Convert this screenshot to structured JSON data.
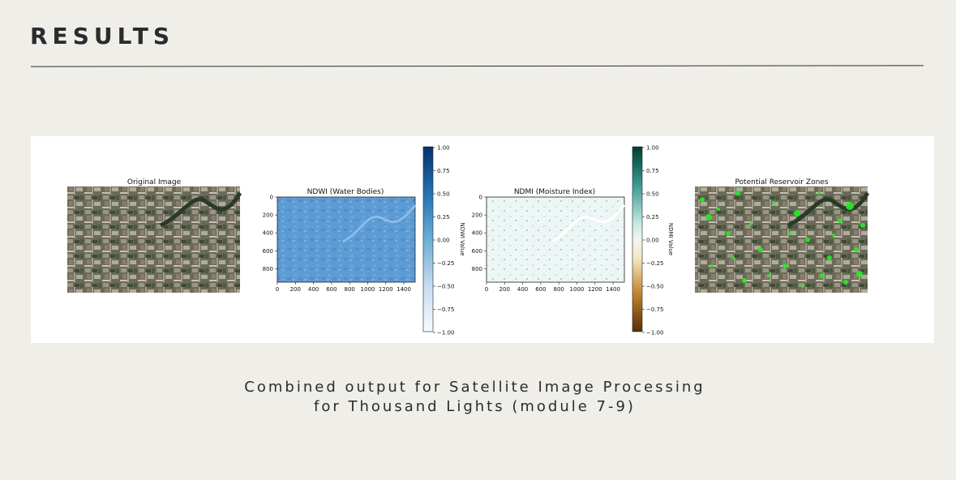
{
  "slide": {
    "title": "RESULTS",
    "caption": "Combined output for Satellite Image Processing for Thousand Lights (module 7-9)"
  },
  "figure": {
    "panels": [
      {
        "title": "Original Image"
      },
      {
        "title": "NDWI (Water Bodies)",
        "x_ticks": [
          "0",
          "200",
          "400",
          "600",
          "800",
          "1000",
          "1200",
          "1400"
        ],
        "y_ticks": [
          "0",
          "200",
          "400",
          "600",
          "800"
        ],
        "colorbar_label": "NDWI Value",
        "colorbar_ticks": [
          "1.00",
          "0.75",
          "0.50",
          "0.25",
          "0.00",
          "−0.25",
          "−0.50",
          "−0.75",
          "−1.00"
        ],
        "colormap": [
          "#08306b",
          "#2171b5",
          "#6baed6",
          "#c6dbef",
          "#f7fbff"
        ]
      },
      {
        "title": "NDMI (Moisture Index)",
        "x_ticks": [
          "0",
          "200",
          "400",
          "600",
          "800",
          "1000",
          "1200",
          "1400"
        ],
        "y_ticks": [
          "0",
          "200",
          "400",
          "600",
          "800"
        ],
        "colorbar_label": "NDMI Value",
        "colorbar_ticks": [
          "1.00",
          "0.75",
          "0.50",
          "0.25",
          "0.00",
          "−0.25",
          "−0.50",
          "−0.75",
          "−1.00"
        ],
        "colormap": [
          "#003c30",
          "#35978f",
          "#c7eae5",
          "#f5f5f5",
          "#f6e8c3",
          "#bf812d",
          "#543005"
        ]
      },
      {
        "title": "Potential Reservoir Zones",
        "highlight_color": "#22ee22"
      }
    ],
    "colors": {
      "ndwi_fill": "#5c9ad4",
      "ndmi_fill": "#e9f4f2"
    }
  }
}
